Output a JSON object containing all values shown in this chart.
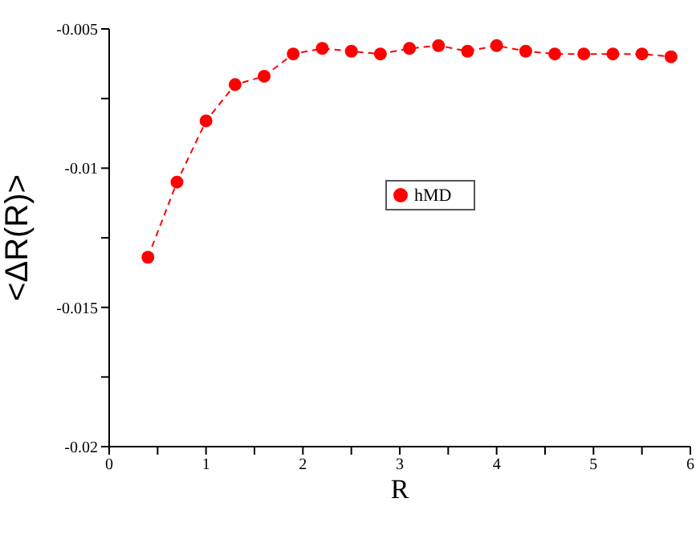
{
  "chart_data": {
    "type": "line",
    "xlabel": "R",
    "ylabel": "<ΔR(R)>",
    "x": [
      0.4,
      0.7,
      1.0,
      1.3,
      1.6,
      1.9,
      2.2,
      2.5,
      2.8,
      3.1,
      3.4,
      3.7,
      4.0,
      4.3,
      4.6,
      4.9,
      5.2,
      5.5,
      5.8
    ],
    "series": [
      {
        "name": "hMD",
        "color": "#ff0000",
        "values": [
          -0.0132,
          -0.0105,
          -0.0083,
          -0.007,
          -0.0067,
          -0.0059,
          -0.0057,
          -0.0058,
          -0.0059,
          -0.0057,
          -0.0056,
          -0.0058,
          -0.0056,
          -0.0058,
          -0.0059,
          -0.0059,
          -0.0059,
          -0.0059,
          -0.006
        ]
      }
    ],
    "xlim": [
      0,
      6
    ],
    "xticks": [
      0,
      {
        "value": 0.5,
        "label": null
      },
      1,
      {
        "value": 1.5,
        "label": null
      },
      2,
      {
        "value": 2.5,
        "label": null
      },
      3,
      {
        "value": 3.5,
        "label": null
      },
      4,
      {
        "value": 4.5,
        "label": null
      },
      5,
      {
        "value": 5.5,
        "label": null
      },
      6
    ],
    "ylim": [
      -0.02,
      -0.005
    ],
    "yticks": [
      -0.02,
      {
        "value": -0.0175,
        "label": null
      },
      -0.015,
      {
        "value": -0.0125,
        "label": null
      },
      -0.01,
      {
        "value": -0.0075,
        "label": null
      },
      -0.005
    ],
    "grid": false,
    "legend": "center",
    "marker": "circle",
    "line_style": "dashed"
  }
}
